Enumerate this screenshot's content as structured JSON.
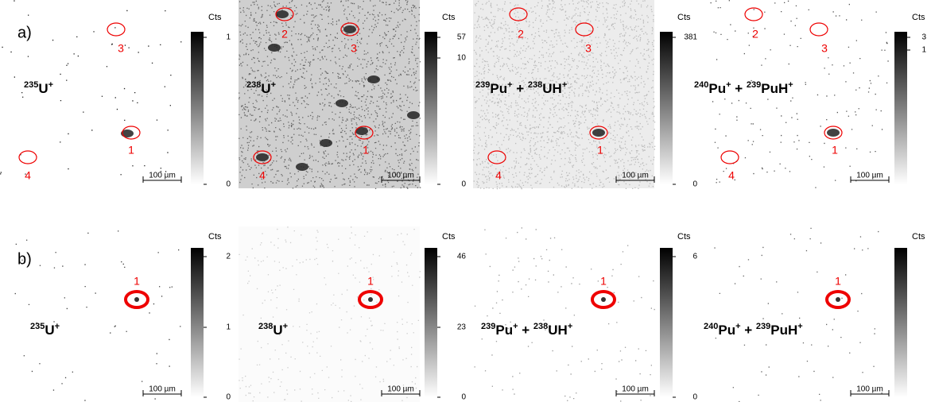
{
  "figure": {
    "rows": [
      {
        "label": "a)",
        "panels": [
          {
            "isotope": [
              {
                "sup": "235"
              },
              {
                "text": "U"
              },
              {
                "sup": "+"
              }
            ],
            "circles": [
              "3",
              "1",
              "4"
            ],
            "scale_bar": "100 µm",
            "colorbar": {
              "unit": "Cts",
              "ticks": [
                "1",
                "0"
              ]
            }
          },
          {
            "isotope": [
              {
                "sup": "238"
              },
              {
                "text": "U"
              },
              {
                "sup": "+"
              }
            ],
            "circles": [
              "2",
              "3",
              "1",
              "4"
            ],
            "scale_bar": "100 µm",
            "colorbar": {
              "unit": "Cts",
              "ticks": [
                "57",
                "10",
                "0"
              ]
            }
          },
          {
            "isotope": [
              {
                "sup": "239"
              },
              {
                "text": "Pu"
              },
              {
                "sup": "+"
              },
              {
                "text": " + "
              },
              {
                "sup": "238"
              },
              {
                "text": "UH"
              },
              {
                "sup": "+"
              }
            ],
            "circles": [
              "2",
              "3",
              "1",
              "4"
            ],
            "scale_bar": "100 µm",
            "colorbar": {
              "unit": "Cts",
              "ticks": [
                "381",
                "0"
              ]
            }
          },
          {
            "isotope": [
              {
                "sup": "240"
              },
              {
                "text": "Pu"
              },
              {
                "sup": "+"
              },
              {
                "text": " + "
              },
              {
                "sup": "239"
              },
              {
                "text": "PuH"
              },
              {
                "sup": "+"
              }
            ],
            "circles": [
              "2",
              "3",
              "1",
              "4"
            ],
            "scale_bar": "100 µm",
            "colorbar": {
              "unit": "Cts",
              "ticks": [
                "3",
                "1"
              ]
            }
          }
        ]
      },
      {
        "label": "b)",
        "panels": [
          {
            "isotope": [
              {
                "sup": "235"
              },
              {
                "text": "U"
              },
              {
                "sup": "+"
              }
            ],
            "circles": [
              "1"
            ],
            "scale_bar": "100 µm",
            "colorbar": {
              "unit": "Cts",
              "ticks": [
                "2",
                "1",
                "0"
              ]
            }
          },
          {
            "isotope": [
              {
                "sup": "238"
              },
              {
                "text": "U"
              },
              {
                "sup": "+"
              }
            ],
            "circles": [
              "1"
            ],
            "scale_bar": "100 µm",
            "colorbar": {
              "unit": "Cts",
              "ticks": [
                "46",
                "23",
                "0"
              ]
            }
          },
          {
            "isotope": [
              {
                "sup": "239"
              },
              {
                "text": "Pu"
              },
              {
                "sup": "+"
              },
              {
                "text": " + "
              },
              {
                "sup": "238"
              },
              {
                "text": "UH"
              },
              {
                "sup": "+"
              }
            ],
            "circles": [
              "1"
            ],
            "scale_bar": "100 µm",
            "colorbar": {
              "unit": "Cts",
              "ticks": [
                "6",
                "0"
              ]
            }
          },
          {
            "isotope": [
              {
                "sup": "240"
              },
              {
                "text": "Pu"
              },
              {
                "sup": "+"
              },
              {
                "text": " + "
              },
              {
                "sup": "239"
              },
              {
                "text": "PuH"
              },
              {
                "sup": "+"
              }
            ],
            "circles": [
              "1"
            ],
            "scale_bar": "100 µm",
            "colorbar": {
              "unit": "Cts"
            }
          }
        ]
      }
    ]
  }
}
